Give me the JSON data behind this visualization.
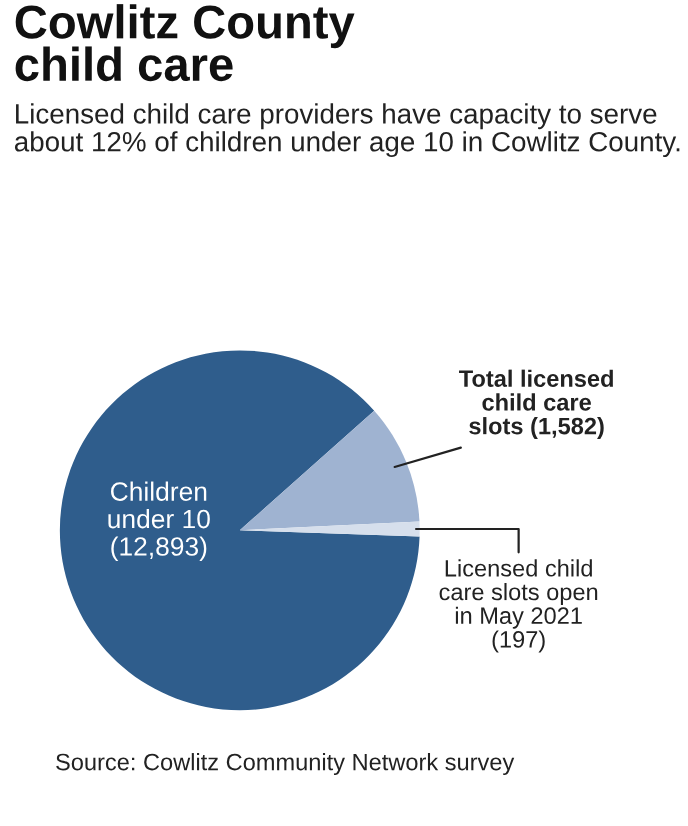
{
  "chart_data": {
    "type": "pie",
    "title": "Cowlitz County\nchild care",
    "subtitle": "Licensed child care providers have capacity to serve about 12% of children under age 10 in Cowlitz County.",
    "categories": [
      "Children\nunder 10\n(12,893)",
      "Total licensed\nchild care\nslots (1,582)",
      "Licensed child\ncare slots open\nin May 2021\n(197)"
    ],
    "values": [
      12893,
      1582,
      197
    ],
    "colors": [
      "#2f5d8c",
      "#9fb3d1",
      "#d6dfec"
    ],
    "annotations": [
      "Source: Cowlitz Community Network survey"
    ]
  }
}
